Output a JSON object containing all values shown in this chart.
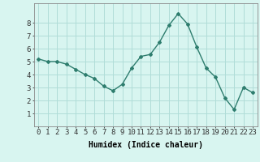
{
  "x": [
    0,
    1,
    2,
    3,
    4,
    5,
    6,
    7,
    8,
    9,
    10,
    11,
    12,
    13,
    14,
    15,
    16,
    17,
    18,
    19,
    20,
    21,
    22,
    23
  ],
  "y": [
    5.2,
    5.0,
    5.0,
    4.8,
    4.4,
    4.0,
    3.7,
    3.1,
    2.75,
    3.25,
    4.5,
    5.4,
    5.55,
    6.5,
    7.8,
    8.7,
    7.9,
    6.1,
    4.5,
    3.8,
    2.2,
    1.3,
    3.0,
    2.6
  ],
  "line_color": "#2e7d6e",
  "marker": "D",
  "marker_size": 2,
  "linewidth": 1.0,
  "bg_color": "#d8f5f0",
  "grid_color": "#b0ddd8",
  "xlabel": "Humidex (Indice chaleur)",
  "xlim": [
    -0.5,
    23.5
  ],
  "ylim": [
    0,
    9.5
  ],
  "yticks": [
    1,
    2,
    3,
    4,
    5,
    6,
    7,
    8
  ],
  "xticks": [
    0,
    1,
    2,
    3,
    4,
    5,
    6,
    7,
    8,
    9,
    10,
    11,
    12,
    13,
    14,
    15,
    16,
    17,
    18,
    19,
    20,
    21,
    22,
    23
  ],
  "xlabel_fontsize": 7,
  "tick_fontsize": 6.5
}
